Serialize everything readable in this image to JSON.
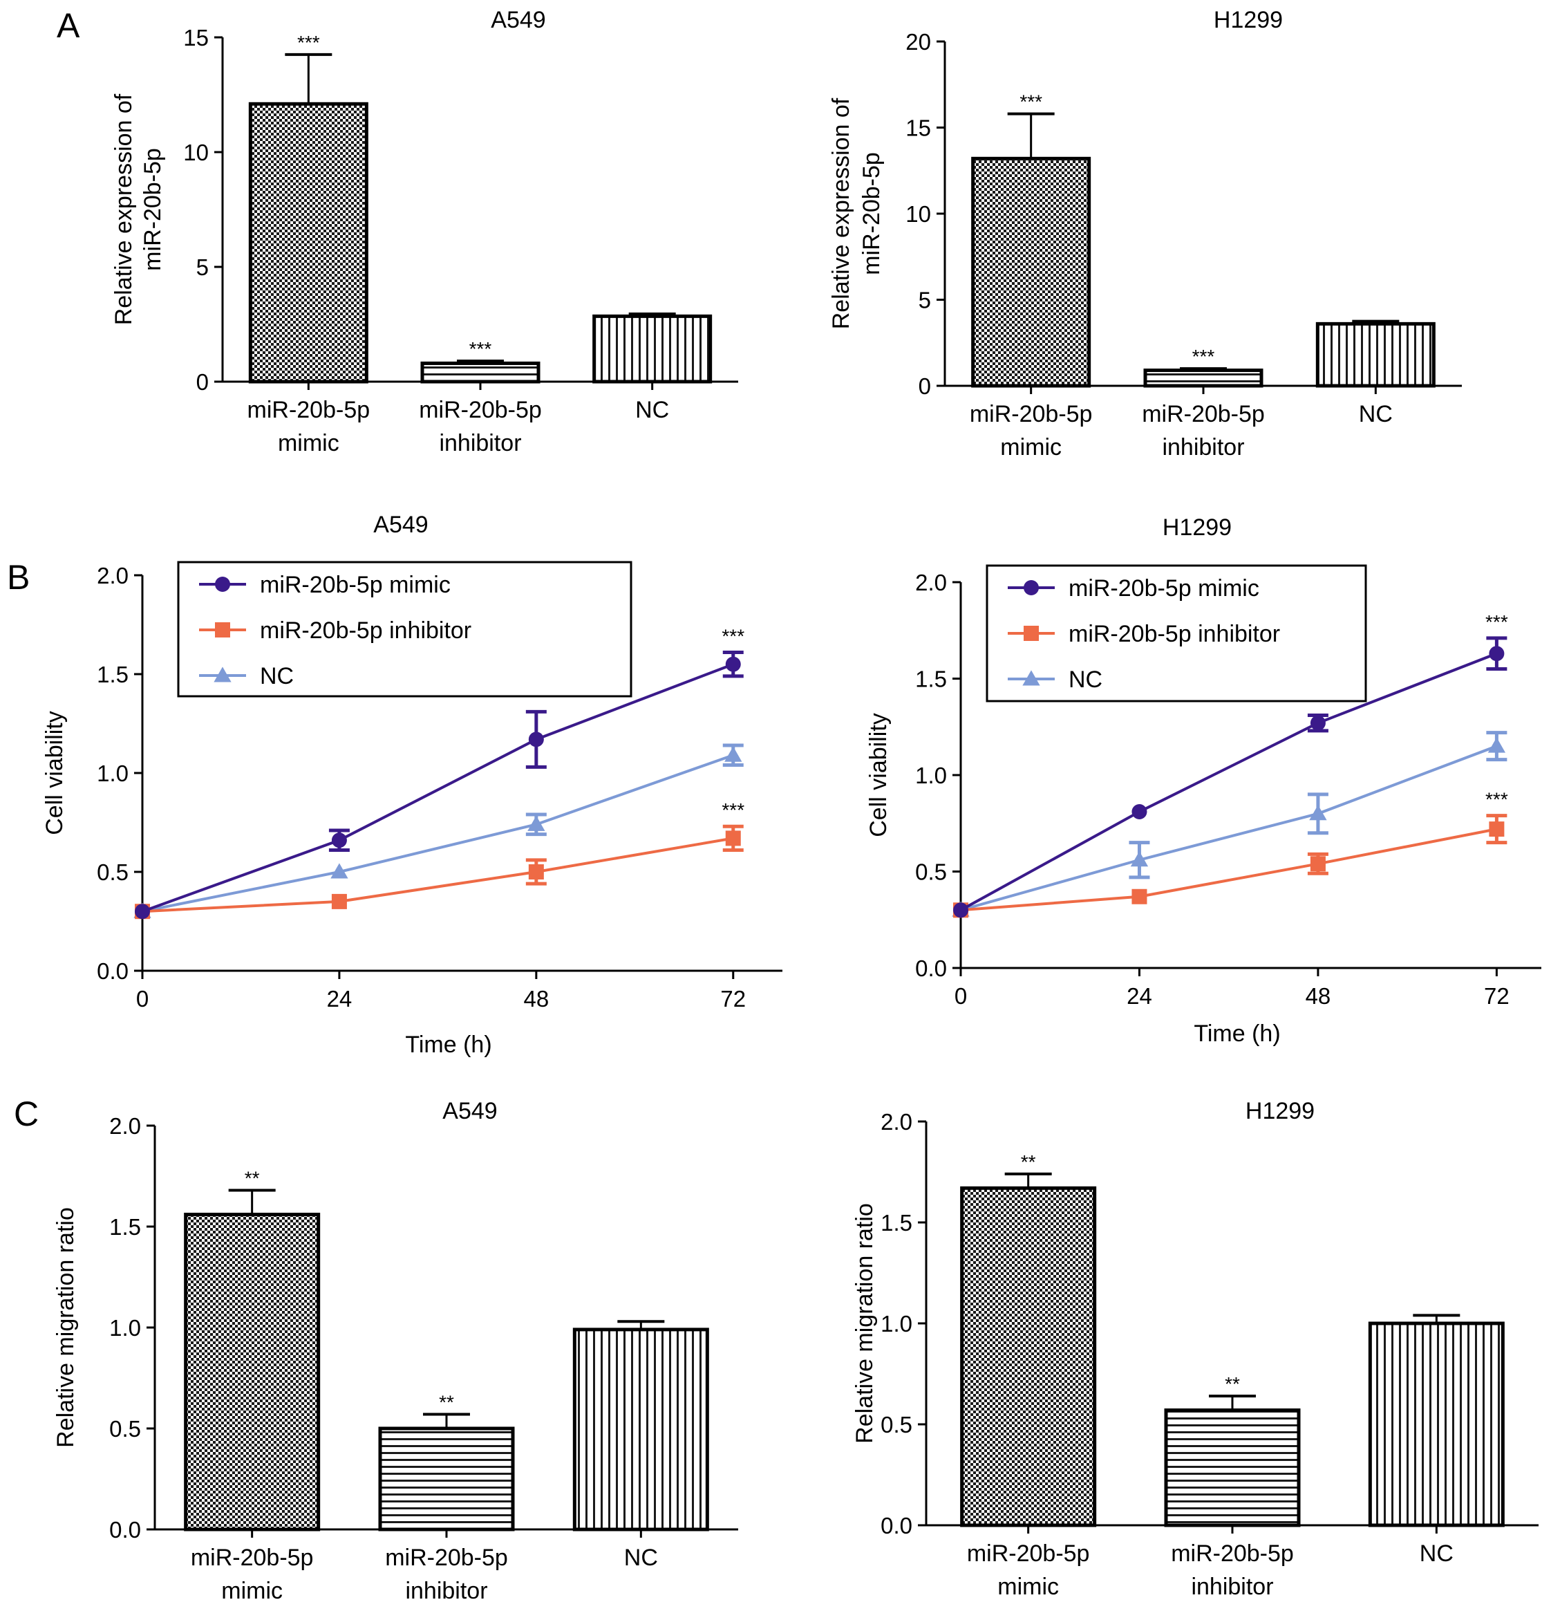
{
  "panels": {
    "A": "A",
    "B": "B",
    "C": "C"
  },
  "colors": {
    "mimic": "#3a1a8a",
    "inhibitor": "#ee6a45",
    "nc": "#7d9ad6"
  },
  "chart_data": [
    {
      "id": "A-A549",
      "panel": "A",
      "type": "bar",
      "title": "A549",
      "ylabel": "Relative expression of miR-20b-5p",
      "ylabel_lines": [
        "Relative expression of",
        "miR-20b-5p"
      ],
      "ylim": [
        0,
        15
      ],
      "yticks": [
        0,
        5,
        10,
        15
      ],
      "ytick_labels": [
        "0",
        "5",
        "10",
        "15"
      ],
      "categories": [
        [
          "miR-20b-5p",
          "mimic"
        ],
        [
          "miR-20b-5p",
          "inhibitor"
        ],
        [
          "NC"
        ]
      ],
      "values": [
        12.1,
        0.8,
        2.85
      ],
      "errors": [
        2.15,
        0.1,
        0.1
      ],
      "significance": [
        "***",
        "***",
        ""
      ],
      "patterns": [
        "checker",
        "hlines",
        "vlines"
      ]
    },
    {
      "id": "A-H1299",
      "panel": "A",
      "type": "bar",
      "title": "H1299",
      "ylabel": "Relative expression of miR-20b-5p",
      "ylabel_lines": [
        "Relative expression of",
        "miR-20b-5p"
      ],
      "ylim": [
        0,
        20
      ],
      "yticks": [
        0,
        5,
        10,
        15,
        20
      ],
      "ytick_labels": [
        "0",
        "5",
        "10",
        "15",
        "20"
      ],
      "categories": [
        [
          "miR-20b-5p",
          "mimic"
        ],
        [
          "miR-20b-5p",
          "inhibitor"
        ],
        [
          "NC"
        ]
      ],
      "values": [
        13.2,
        0.9,
        3.6
      ],
      "errors": [
        2.6,
        0.1,
        0.15
      ],
      "significance": [
        "***",
        "***",
        ""
      ],
      "patterns": [
        "checker",
        "hlines",
        "vlines"
      ]
    },
    {
      "id": "B-A549",
      "panel": "B",
      "type": "line",
      "title": "A549",
      "xlabel": "Time (h)",
      "ylabel": "Cell viability",
      "x": [
        0,
        24,
        48,
        72
      ],
      "xlim": [
        0,
        78
      ],
      "ylim": [
        0,
        2.0
      ],
      "yticks": [
        0,
        0.5,
        1.0,
        1.5,
        2.0
      ],
      "ytick_labels": [
        "0.0",
        "0.5",
        "1.0",
        "1.5",
        "2.0"
      ],
      "xticks": [
        0,
        24,
        48,
        72
      ],
      "xtick_labels": [
        "0",
        "24",
        "48",
        "72"
      ],
      "series": [
        {
          "name": "miR-20b-5p mimic",
          "marker": "circle",
          "color_key": "mimic",
          "values": [
            0.3,
            0.66,
            1.17,
            1.55
          ],
          "errors": [
            0.02,
            0.05,
            0.14,
            0.06
          ]
        },
        {
          "name": "miR-20b-5p inhibitor",
          "marker": "square",
          "color_key": "inhibitor",
          "values": [
            0.3,
            0.35,
            0.5,
            0.67
          ],
          "errors": [
            0.02,
            0.02,
            0.06,
            0.06
          ]
        },
        {
          "name": "NC",
          "marker": "triangle",
          "color_key": "nc",
          "values": [
            0.3,
            0.5,
            0.74,
            1.09
          ],
          "errors": [
            0.02,
            0.02,
            0.05,
            0.05
          ]
        }
      ],
      "annotations": [
        {
          "x": 72,
          "y": 1.61,
          "text": "***"
        },
        {
          "x": 72,
          "y": 0.73,
          "text": "***"
        }
      ],
      "legend": "top-left"
    },
    {
      "id": "B-H1299",
      "panel": "B",
      "type": "line",
      "title": "H1299",
      "xlabel": "Time (h)",
      "ylabel": "Cell viability",
      "x": [
        0,
        24,
        48,
        72
      ],
      "xlim": [
        0,
        78
      ],
      "ylim": [
        0,
        2.0
      ],
      "yticks": [
        0,
        0.5,
        1.0,
        1.5,
        2.0
      ],
      "ytick_labels": [
        "0.0",
        "0.5",
        "1.0",
        "1.5",
        "2.0"
      ],
      "xticks": [
        0,
        24,
        48,
        72
      ],
      "xtick_labels": [
        "0",
        "24",
        "48",
        "72"
      ],
      "series": [
        {
          "name": "miR-20b-5p mimic",
          "marker": "circle",
          "color_key": "mimic",
          "values": [
            0.3,
            0.81,
            1.27,
            1.63
          ],
          "errors": [
            0.02,
            0.02,
            0.04,
            0.08
          ]
        },
        {
          "name": "miR-20b-5p inhibitor",
          "marker": "square",
          "color_key": "inhibitor",
          "values": [
            0.3,
            0.37,
            0.54,
            0.72
          ],
          "errors": [
            0.02,
            0.02,
            0.05,
            0.07
          ]
        },
        {
          "name": "NC",
          "marker": "triangle",
          "color_key": "nc",
          "values": [
            0.3,
            0.56,
            0.8,
            1.15
          ],
          "errors": [
            0.02,
            0.09,
            0.1,
            0.07
          ]
        }
      ],
      "annotations": [
        {
          "x": 72,
          "y": 1.71,
          "text": "***"
        },
        {
          "x": 72,
          "y": 0.79,
          "text": "***"
        }
      ],
      "legend": "top-left"
    },
    {
      "id": "C-A549",
      "panel": "C",
      "type": "bar",
      "title": "A549",
      "ylabel": "Relative migration ratio",
      "ylabel_lines": [
        "Relative migration ratio"
      ],
      "ylim": [
        0,
        2.0
      ],
      "yticks": [
        0,
        0.5,
        1.0,
        1.5,
        2.0
      ],
      "ytick_labels": [
        "0.0",
        "0.5",
        "1.0",
        "1.5",
        "2.0"
      ],
      "categories": [
        [
          "miR-20b-5p",
          "mimic"
        ],
        [
          "miR-20b-5p",
          "inhibitor"
        ],
        [
          "NC"
        ]
      ],
      "values": [
        1.56,
        0.5,
        0.99
      ],
      "errors": [
        0.12,
        0.07,
        0.04
      ],
      "significance": [
        "**",
        "**",
        ""
      ],
      "patterns": [
        "checker",
        "hlines",
        "vlines"
      ]
    },
    {
      "id": "C-H1299",
      "panel": "C",
      "type": "bar",
      "title": "H1299",
      "ylabel": "Relative migration ratio",
      "ylabel_lines": [
        "Relative migration ratio"
      ],
      "ylim": [
        0,
        2.0
      ],
      "yticks": [
        0,
        0.5,
        1.0,
        1.5,
        2.0
      ],
      "ytick_labels": [
        "0.0",
        "0.5",
        "1.0",
        "1.5",
        "2.0"
      ],
      "categories": [
        [
          "miR-20b-5p",
          "mimic"
        ],
        [
          "miR-20b-5p",
          "inhibitor"
        ],
        [
          "NC"
        ]
      ],
      "values": [
        1.67,
        0.57,
        1.0
      ],
      "errors": [
        0.07,
        0.07,
        0.04
      ],
      "significance": [
        "**",
        "**",
        ""
      ],
      "patterns": [
        "checker",
        "hlines",
        "vlines"
      ]
    }
  ]
}
